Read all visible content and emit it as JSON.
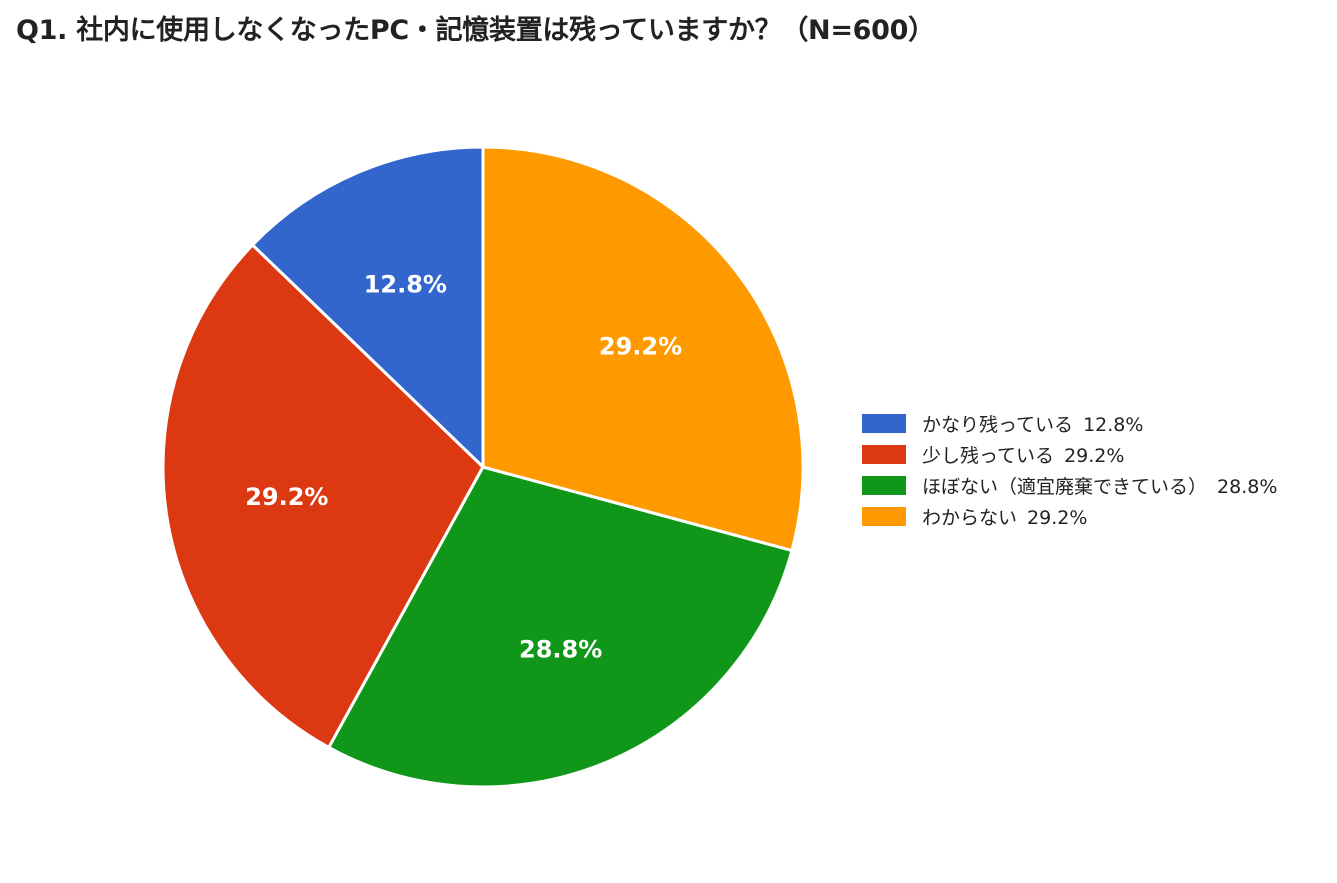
{
  "chart_data": {
    "type": "pie",
    "title": "Q1. 社内に使用しなくなったPC・記憶装置は残っていますか？（N=600）",
    "slices": [
      {
        "name": "かなり残っている",
        "value": 12.8,
        "label": "12.8%",
        "color": "#3366cc"
      },
      {
        "name": "少し残っている",
        "value": 29.2,
        "label": "29.2%",
        "color": "#dc3912"
      },
      {
        "name": "ほぼない（適宜廃棄できている）",
        "value": 28.8,
        "label": "28.8%",
        "color": "#109618"
      },
      {
        "name": "わからない",
        "value": 29.2,
        "label": "29.2%",
        "color": "#ff9900"
      }
    ],
    "order": "counterclockwise from top",
    "legend_position": "right"
  }
}
